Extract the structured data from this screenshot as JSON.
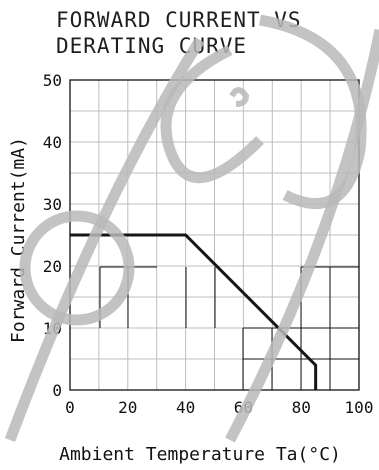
{
  "chart_data": {
    "type": "line",
    "title_lines": [
      "FORWARD CURRENT VS",
      "DERATING CURVE"
    ],
    "xlabel": "Ambient  Temperature  Ta(°C)",
    "ylabel": "Forward  Current(mA)",
    "xlim": [
      0,
      100
    ],
    "ylim": [
      0,
      50
    ],
    "x_ticks": [
      "0",
      "20",
      "40",
      "60",
      "80",
      "100"
    ],
    "y_ticks": [
      "0",
      "10",
      "20",
      "30",
      "40",
      "50"
    ],
    "grid": true,
    "series": [
      {
        "x": [
          0,
          40,
          85,
          85
        ],
        "y": [
          25,
          25,
          4,
          0
        ]
      }
    ]
  },
  "watermark": "logo-watermark",
  "colors": {
    "curve": "#161616",
    "grid": "#bdbdbd",
    "watermark": "#b8b8b8"
  }
}
